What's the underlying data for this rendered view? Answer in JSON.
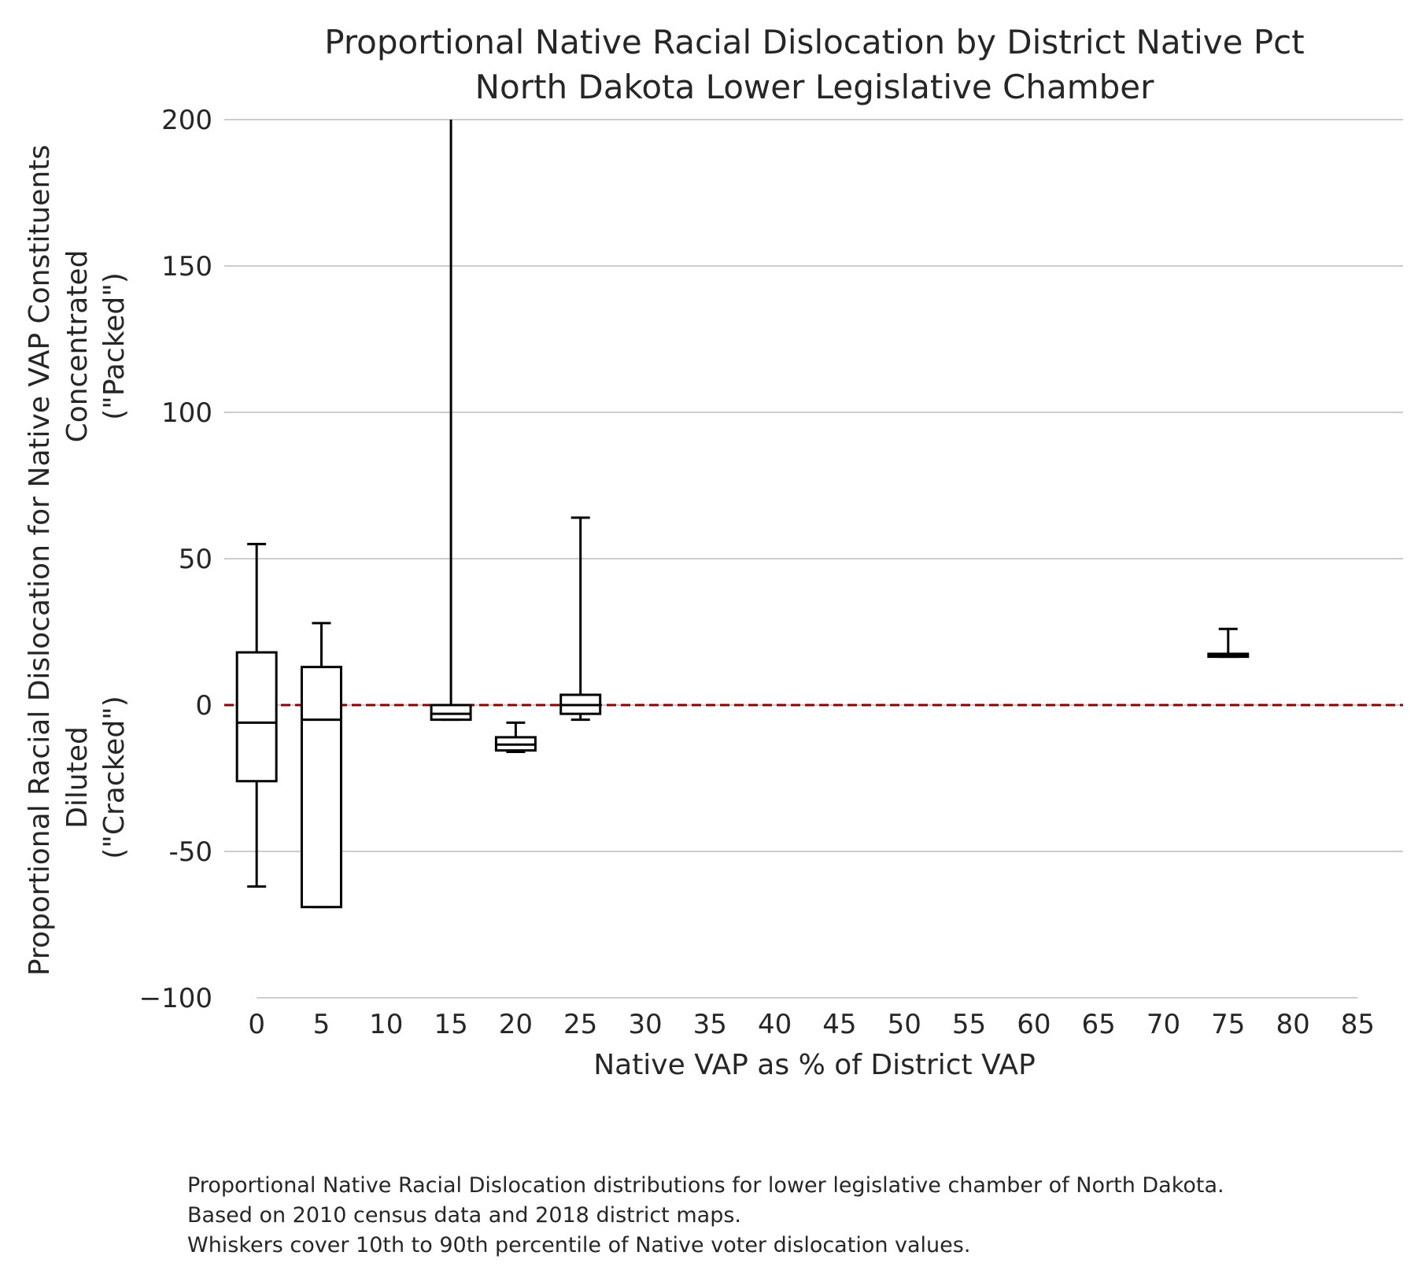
{
  "chart_data": {
    "type": "box",
    "title": "Proportional Native Racial Dislocation by District Native Pct",
    "subtitle": "North Dakota Lower Legislative Chamber",
    "xlabel": "Native VAP as % of District VAP",
    "ylabel_lines": [
      "Proportional Racial Dislocation for Native VAP Constituents",
      "Diluted",
      "(\"Cracked\")",
      "Concentrated",
      "(\"Packed\")"
    ],
    "x_ticks": [
      0,
      5,
      10,
      15,
      20,
      25,
      30,
      35,
      40,
      45,
      50,
      55,
      60,
      65,
      70,
      75,
      80,
      85
    ],
    "xlim": [
      -2.5,
      88.5
    ],
    "y_ticks": [
      -100,
      -50,
      0,
      50,
      100,
      150,
      200
    ],
    "y_tick_labels": [
      "−100",
      "-50",
      "0",
      "50",
      "100",
      "150",
      "200"
    ],
    "ylim": [
      -100,
      200
    ],
    "grid": true,
    "reference_line": {
      "y": 0,
      "color": "#8b0000",
      "style": "dashed"
    },
    "boxes": [
      {
        "x": 0,
        "whisker_low": -62,
        "q1": -26,
        "median": -6,
        "q3": 18,
        "whisker_high": 55
      },
      {
        "x": 5,
        "whisker_low": -69,
        "q1": -69,
        "median": -5,
        "q3": 13,
        "whisker_high": 28
      },
      {
        "x": 15,
        "whisker_low": -5,
        "q1": -5,
        "median": -3,
        "q3": 0,
        "whisker_high": 200
      },
      {
        "x": 20,
        "whisker_low": -16,
        "q1": -15.5,
        "median": -13.5,
        "q3": -11,
        "whisker_high": -6
      },
      {
        "x": 25,
        "whisker_low": -5,
        "q1": -3,
        "median": 0,
        "q3": 3.5,
        "whisker_high": 64
      },
      {
        "x": 75,
        "whisker_low": 16.5,
        "q1": 16.5,
        "median": 17,
        "q3": 17.5,
        "whisker_high": 26
      }
    ]
  },
  "caption": {
    "line1": "Proportional Native Racial Dislocation distributions for lower legislative chamber of North Dakota.",
    "line2": "Based on 2010 census data and 2018 district maps.",
    "line3": "Whiskers cover 10th to 90th percentile of Native voter dislocation values."
  },
  "colors": {
    "box": "#000000",
    "grid": "#cccccc",
    "zero_line": "#8b0000",
    "text": "#262626"
  }
}
